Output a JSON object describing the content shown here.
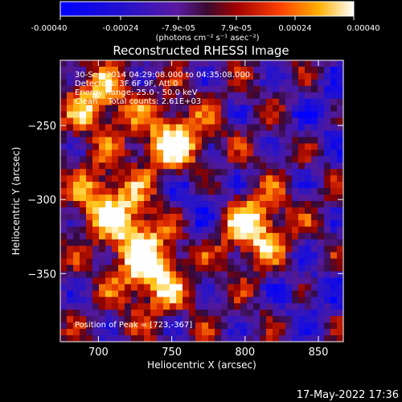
{
  "colorbar": {
    "ticks": [
      "-0.00040",
      "-0.00024",
      "-7.9e-05",
      "7.9e-05",
      "0.00024",
      "0.00040"
    ],
    "unit_label": "(photons cm⁻² s⁻¹ asec⁻²)"
  },
  "chart_data": {
    "type": "heatmap",
    "title": "Reconstructed RHESSI Image",
    "xlabel": "Heliocentric X (arcsec)",
    "ylabel": "Heliocentric Y (arcsec)",
    "xlim": [
      674,
      867
    ],
    "ylim": [
      -396,
      -206
    ],
    "value_range": [
      -0.0004,
      0.0004
    ],
    "x_ticks": [
      700,
      750,
      800,
      850
    ],
    "y_ticks": [
      -250,
      -300,
      -350
    ],
    "colormap": "blue-purple-red-orange-yellow-white",
    "annotations": [
      "30-Sep-2014 04:29:08.000 to 04:35:08.000",
      "Detectors: 3F 6F 9F, Att 0",
      "Energy Range: 25.0 - 50.0 keV",
      "Clean    Total counts: 2.61E+03"
    ],
    "peak_text": "Position of Peak = [723,-367]",
    "hot_regions_arcsec": [
      {
        "x": 752,
        "y": -262,
        "level": 1.0
      },
      {
        "x": 805,
        "y": -318,
        "level": 1.0
      },
      {
        "x": 737,
        "y": -352,
        "level": 0.9
      },
      {
        "x": 704,
        "y": -300,
        "level": 0.75
      },
      {
        "x": 700,
        "y": -235,
        "level": 0.75
      },
      {
        "x": 726,
        "y": -322,
        "level": 0.7
      }
    ],
    "cool_regions_arcsec": [
      {
        "x": 768,
        "y": -300,
        "level": 0.55
      },
      {
        "x": 858,
        "y": -240,
        "level": 0.4
      },
      {
        "x": 845,
        "y": -365,
        "level": 0.35
      }
    ]
  },
  "timestamp": "17-May-2022 17:36"
}
